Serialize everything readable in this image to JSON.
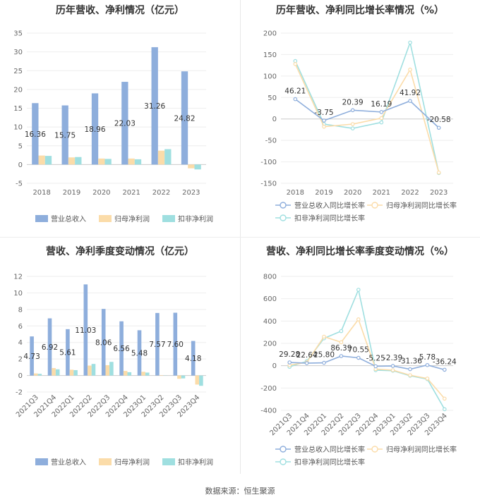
{
  "source": "数据来源：恒生聚源",
  "chart_data": [
    {
      "type": "bar",
      "title": "历年营收、净利情况（亿元）",
      "categories": [
        "2018",
        "2019",
        "2020",
        "2021",
        "2022",
        "2023"
      ],
      "ylim": [
        -5,
        35
      ],
      "yticks": [
        -5,
        0,
        5,
        10,
        15,
        20,
        25,
        30,
        35
      ],
      "grid": true,
      "legend": "bottom",
      "series": [
        {
          "name": "营业总收入",
          "color": "#8eaedc",
          "values": [
            16.36,
            15.75,
            18.96,
            22.03,
            31.26,
            24.82
          ],
          "labels": [
            "16.36",
            "15.75",
            "18.96",
            "22.03",
            "31.26",
            "24.82"
          ]
        },
        {
          "name": "归母净利润",
          "color": "#fbdca9",
          "values": [
            2.4,
            1.9,
            1.6,
            1.6,
            3.7,
            -1.0
          ]
        },
        {
          "name": "扣非净利润",
          "color": "#9fdfe0",
          "values": [
            2.3,
            2.0,
            1.5,
            1.4,
            4.1,
            -1.3
          ]
        }
      ]
    },
    {
      "type": "line",
      "title": "历年营收、净利同比增长率情况（%）",
      "categories": [
        "2018",
        "2019",
        "2020",
        "2021",
        "2022",
        "2023"
      ],
      "ylim": [
        -150,
        200
      ],
      "yticks": [
        -150,
        -100,
        -50,
        0,
        50,
        100,
        150,
        200
      ],
      "grid": true,
      "legend": "bottom",
      "series": [
        {
          "name": "营业总收入同比增长率",
          "color": "#8eaedc",
          "values": [
            46.21,
            -3.75,
            20.39,
            16.19,
            41.92,
            -20.58
          ],
          "labels": [
            "46.21",
            "-3.75",
            "20.39",
            "16.19",
            "41.92",
            "-20.58"
          ]
        },
        {
          "name": "归母净利润同比增长率",
          "color": "#fbdca9",
          "values": [
            128,
            -18,
            -12,
            2,
            115,
            -125
          ]
        },
        {
          "name": "扣非净利润同比增长率",
          "color": "#9fdfe0",
          "values": [
            135,
            -12,
            -22,
            -8,
            178,
            -126
          ]
        }
      ]
    },
    {
      "type": "bar",
      "title": "营收、净利季度变动情况（亿元）",
      "categories": [
        "2021Q3",
        "2021Q4",
        "2022Q1",
        "2022Q2",
        "2022Q3",
        "2022Q4",
        "2023Q1",
        "2023Q2",
        "2023Q3",
        "2023Q4"
      ],
      "ylim": [
        -2,
        12
      ],
      "yticks": [
        -2,
        0,
        2,
        4,
        6,
        8,
        10,
        12
      ],
      "grid": true,
      "legend": "bottom",
      "series": [
        {
          "name": "营业总收入",
          "color": "#8eaedc",
          "values": [
            4.73,
            6.92,
            5.61,
            11.03,
            8.06,
            6.56,
            5.48,
            7.57,
            7.6,
            4.18
          ],
          "labels": [
            "4.73",
            "6.92",
            "5.61",
            "11.03",
            "8.06",
            "6.56",
            "5.48",
            "7.57",
            "7.60",
            "4.18"
          ]
        },
        {
          "name": "归母净利润",
          "color": "#fbdca9",
          "values": [
            0.25,
            0.9,
            0.7,
            1.2,
            1.25,
            0.55,
            0.45,
            0.05,
            -0.4,
            -1.1
          ]
        },
        {
          "name": "扣非净利润",
          "color": "#9fdfe0",
          "values": [
            0.2,
            0.75,
            0.65,
            1.4,
            1.65,
            0.4,
            0.35,
            0.02,
            -0.35,
            -1.25
          ]
        }
      ]
    },
    {
      "type": "line",
      "title": "营收、净利同比增长率季度变动情况（%）",
      "categories": [
        "2021Q3",
        "2021Q4",
        "2022Q1",
        "2022Q2",
        "2022Q3",
        "2022Q4",
        "2023Q1",
        "2023Q2",
        "2023Q3",
        "2023Q4"
      ],
      "ylim": [
        -400,
        800
      ],
      "yticks": [
        -400,
        -200,
        0,
        200,
        400,
        600,
        800
      ],
      "grid": true,
      "legend": "bottom",
      "series": [
        {
          "name": "营业总收入同比增长率",
          "color": "#8eaedc",
          "values": [
            29.28,
            22.64,
            25.8,
            86.39,
            70.55,
            -5.25,
            -2.39,
            -31.36,
            5.78,
            -36.24
          ],
          "labels": [
            "29.28",
            "22.64",
            "25.80",
            "86.39",
            "70.55",
            "-5.25",
            "-2.39",
            "-31.36",
            "5.78",
            "-36.24"
          ]
        },
        {
          "name": "归母净利润同比增长率",
          "color": "#fbdca9",
          "values": [
            5,
            30,
            260,
            210,
            415,
            -30,
            -40,
            -85,
            -115,
            -295
          ]
        },
        {
          "name": "扣非净利润同比增长率",
          "color": "#9fdfe0",
          "values": [
            -10,
            40,
            245,
            310,
            680,
            -40,
            -45,
            -90,
            -120,
            -390
          ]
        }
      ]
    }
  ]
}
